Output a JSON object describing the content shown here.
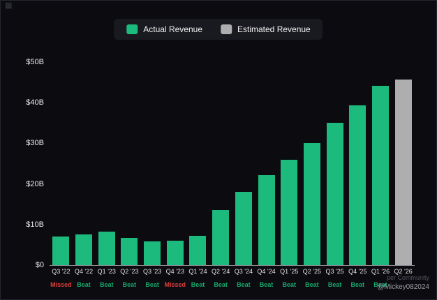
{
  "legend": {
    "actual_label": "Actual Revenue",
    "estimated_label": "Estimated Revenue"
  },
  "watermark": {
    "line1": "per Community",
    "line2": "@Mickey082024"
  },
  "colors": {
    "actual": "#1dba7d",
    "estimated": "#aeaeae",
    "beat": "#17ab6e",
    "missed": "#e03e3e",
    "background": "#0b0b10"
  },
  "chart_data": {
    "type": "bar",
    "title": "",
    "xlabel": "",
    "ylabel": "",
    "ylim": [
      0,
      50
    ],
    "grid": false,
    "legend_position": "top",
    "y_ticks": [
      {
        "label": "$0",
        "value": 0
      },
      {
        "label": "$10B",
        "value": 10
      },
      {
        "label": "$20B",
        "value": 20
      },
      {
        "label": "$30B",
        "value": 30
      },
      {
        "label": "$40B",
        "value": 40
      },
      {
        "label": "$50B",
        "value": 50
      }
    ],
    "categories": [
      "Q3 '22",
      "Q4 '22",
      "Q1 '23",
      "Q2 '23",
      "Q3 '23",
      "Q4 '23",
      "Q1 '24",
      "Q2 '24",
      "Q3 '24",
      "Q4 '24",
      "Q1 '25",
      "Q2 '25",
      "Q3 '25",
      "Q4 '25",
      "Q1 '26",
      "Q2 '26"
    ],
    "values": [
      7.1,
      7.6,
      8.3,
      6.7,
      5.9,
      6.1,
      7.2,
      13.5,
      18.1,
      22.1,
      26.0,
      30.0,
      35.1,
      39.3,
      44.1,
      45.7
    ],
    "bar_types": [
      "actual",
      "actual",
      "actual",
      "actual",
      "actual",
      "actual",
      "actual",
      "actual",
      "actual",
      "actual",
      "actual",
      "actual",
      "actual",
      "actual",
      "actual",
      "estimated"
    ],
    "results": [
      "Missed",
      "Beat",
      "Beat",
      "Beat",
      "Beat",
      "Missed",
      "Beat",
      "Beat",
      "Beat",
      "Beat",
      "Beat",
      "Beat",
      "Beat",
      "Beat",
      "Beat",
      ""
    ]
  }
}
